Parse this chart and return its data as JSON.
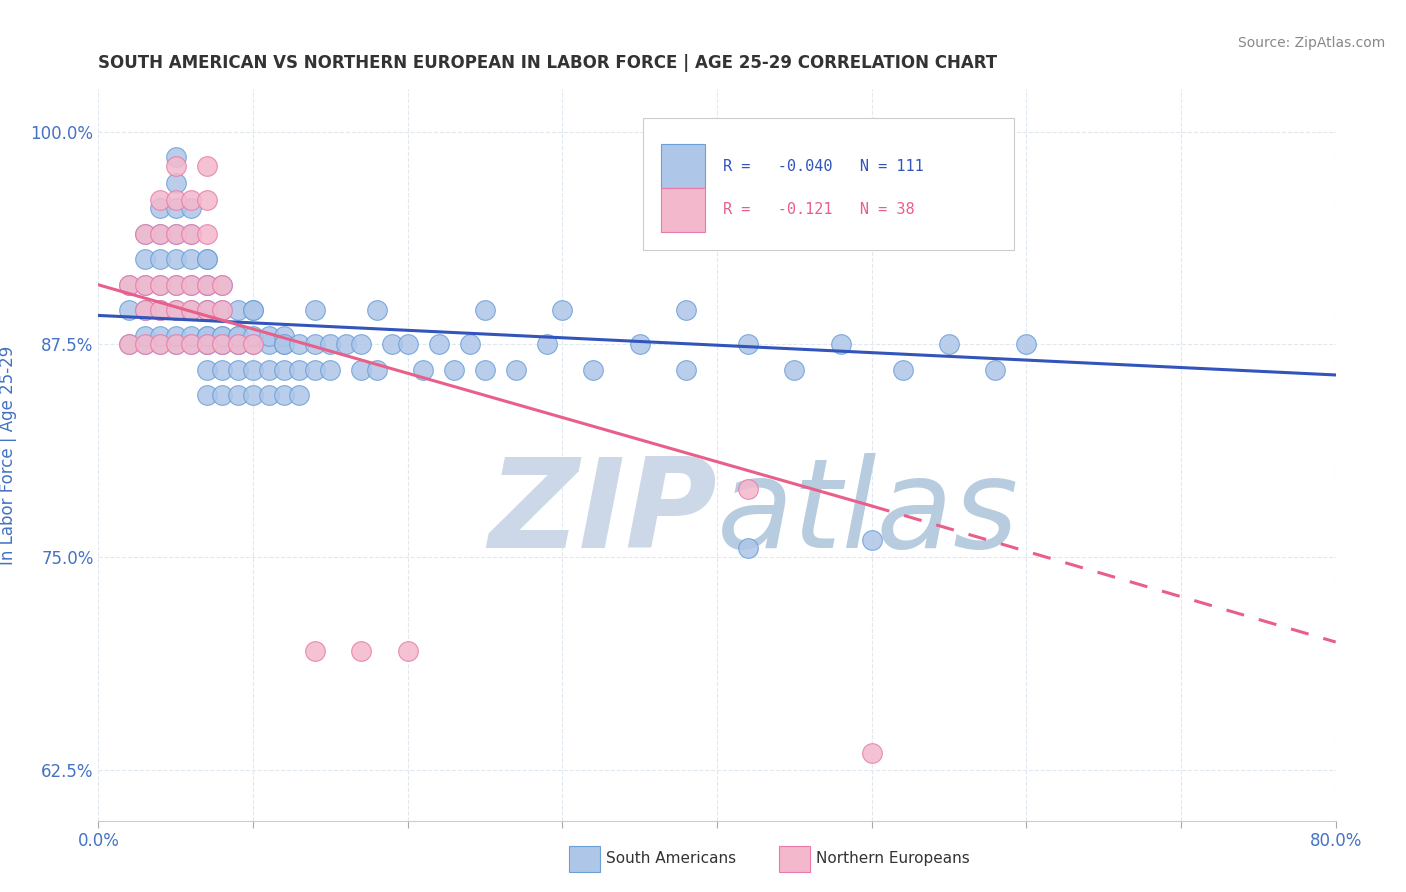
{
  "title": "SOUTH AMERICAN VS NORTHERN EUROPEAN IN LABOR FORCE | AGE 25-29 CORRELATION CHART",
  "source_text": "Source: ZipAtlas.com",
  "ylabel": "In Labor Force | Age 25-29",
  "xlim": [
    0.0,
    0.8
  ],
  "ylim": [
    0.595,
    1.025
  ],
  "xticks": [
    0.0,
    0.1,
    0.2,
    0.3,
    0.4,
    0.5,
    0.6,
    0.7,
    0.8
  ],
  "xticklabels": [
    "0.0%",
    "",
    "",
    "",
    "",
    "",
    "",
    "",
    "80.0%"
  ],
  "yticks": [
    0.625,
    0.75,
    0.875,
    1.0
  ],
  "yticklabels": [
    "62.5%",
    "75.0%",
    "87.5%",
    "100.0%"
  ],
  "blue_R": -0.04,
  "blue_N": 111,
  "pink_R": -0.121,
  "pink_N": 38,
  "blue_color": "#aec6e8",
  "blue_edge": "#6a9fd8",
  "pink_color": "#f4b8cc",
  "pink_edge": "#e87aaa",
  "blue_line_color": "#3355bb",
  "pink_line_color": "#e8608a",
  "watermark_color": "#ccd8e8",
  "legend_blue_label": "South Americans",
  "legend_pink_label": "Northern Europeans",
  "title_color": "#333333",
  "axis_label_color": "#4472c4",
  "tick_label_color": "#4472c4",
  "blue_scatter_x": [
    0.02,
    0.02,
    0.02,
    0.03,
    0.03,
    0.03,
    0.03,
    0.03,
    0.03,
    0.04,
    0.04,
    0.04,
    0.04,
    0.04,
    0.04,
    0.04,
    0.05,
    0.05,
    0.05,
    0.05,
    0.05,
    0.05,
    0.05,
    0.05,
    0.05,
    0.06,
    0.06,
    0.06,
    0.06,
    0.06,
    0.06,
    0.06,
    0.07,
    0.07,
    0.07,
    0.07,
    0.07,
    0.07,
    0.07,
    0.07,
    0.07,
    0.07,
    0.07,
    0.07,
    0.08,
    0.08,
    0.08,
    0.08,
    0.08,
    0.08,
    0.08,
    0.08,
    0.09,
    0.09,
    0.09,
    0.09,
    0.09,
    0.09,
    0.09,
    0.1,
    0.1,
    0.1,
    0.1,
    0.1,
    0.11,
    0.11,
    0.11,
    0.11,
    0.12,
    0.12,
    0.12,
    0.12,
    0.12,
    0.13,
    0.13,
    0.13,
    0.14,
    0.14,
    0.15,
    0.15,
    0.16,
    0.17,
    0.17,
    0.18,
    0.19,
    0.2,
    0.21,
    0.22,
    0.23,
    0.24,
    0.25,
    0.27,
    0.29,
    0.32,
    0.35,
    0.38,
    0.42,
    0.45,
    0.48,
    0.52,
    0.55,
    0.58,
    0.6,
    0.42,
    0.5,
    0.38,
    0.3,
    0.25,
    0.18,
    0.14,
    0.1
  ],
  "blue_scatter_y": [
    0.875,
    0.895,
    0.91,
    0.875,
    0.88,
    0.895,
    0.91,
    0.925,
    0.94,
    0.875,
    0.88,
    0.895,
    0.91,
    0.925,
    0.94,
    0.955,
    0.875,
    0.88,
    0.895,
    0.91,
    0.925,
    0.94,
    0.955,
    0.97,
    0.985,
    0.875,
    0.88,
    0.895,
    0.91,
    0.925,
    0.94,
    0.955,
    0.875,
    0.88,
    0.895,
    0.91,
    0.925,
    0.86,
    0.845,
    0.875,
    0.88,
    0.895,
    0.91,
    0.925,
    0.875,
    0.88,
    0.895,
    0.91,
    0.86,
    0.845,
    0.875,
    0.88,
    0.875,
    0.88,
    0.895,
    0.86,
    0.845,
    0.875,
    0.88,
    0.875,
    0.88,
    0.895,
    0.86,
    0.845,
    0.875,
    0.88,
    0.86,
    0.845,
    0.875,
    0.88,
    0.86,
    0.845,
    0.875,
    0.875,
    0.86,
    0.845,
    0.875,
    0.86,
    0.875,
    0.86,
    0.875,
    0.86,
    0.875,
    0.86,
    0.875,
    0.875,
    0.86,
    0.875,
    0.86,
    0.875,
    0.86,
    0.86,
    0.875,
    0.86,
    0.875,
    0.86,
    0.875,
    0.86,
    0.875,
    0.86,
    0.875,
    0.86,
    0.875,
    0.755,
    0.76,
    0.895,
    0.895,
    0.895,
    0.895,
    0.895,
    0.895
  ],
  "pink_scatter_x": [
    0.02,
    0.02,
    0.03,
    0.03,
    0.03,
    0.03,
    0.04,
    0.04,
    0.04,
    0.04,
    0.04,
    0.05,
    0.05,
    0.05,
    0.05,
    0.05,
    0.05,
    0.06,
    0.06,
    0.06,
    0.06,
    0.06,
    0.07,
    0.07,
    0.07,
    0.07,
    0.07,
    0.07,
    0.08,
    0.08,
    0.08,
    0.09,
    0.14,
    0.17,
    0.42,
    0.5,
    0.2,
    0.1
  ],
  "pink_scatter_y": [
    0.875,
    0.91,
    0.875,
    0.895,
    0.91,
    0.94,
    0.875,
    0.895,
    0.91,
    0.94,
    0.96,
    0.875,
    0.895,
    0.91,
    0.94,
    0.96,
    0.98,
    0.875,
    0.895,
    0.91,
    0.94,
    0.96,
    0.875,
    0.895,
    0.91,
    0.94,
    0.96,
    0.98,
    0.875,
    0.895,
    0.91,
    0.875,
    0.695,
    0.695,
    0.79,
    0.635,
    0.695,
    0.875
  ],
  "blue_trend_x0": 0.0,
  "blue_trend_y0": 0.892,
  "blue_trend_x1": 0.8,
  "blue_trend_y1": 0.857,
  "pink_trend_x0": 0.0,
  "pink_trend_y0": 0.91,
  "pink_trend_solid_x1": 0.5,
  "pink_trend_solid_y1": 0.78,
  "pink_trend_x1": 0.8,
  "pink_trend_y1": 0.7
}
